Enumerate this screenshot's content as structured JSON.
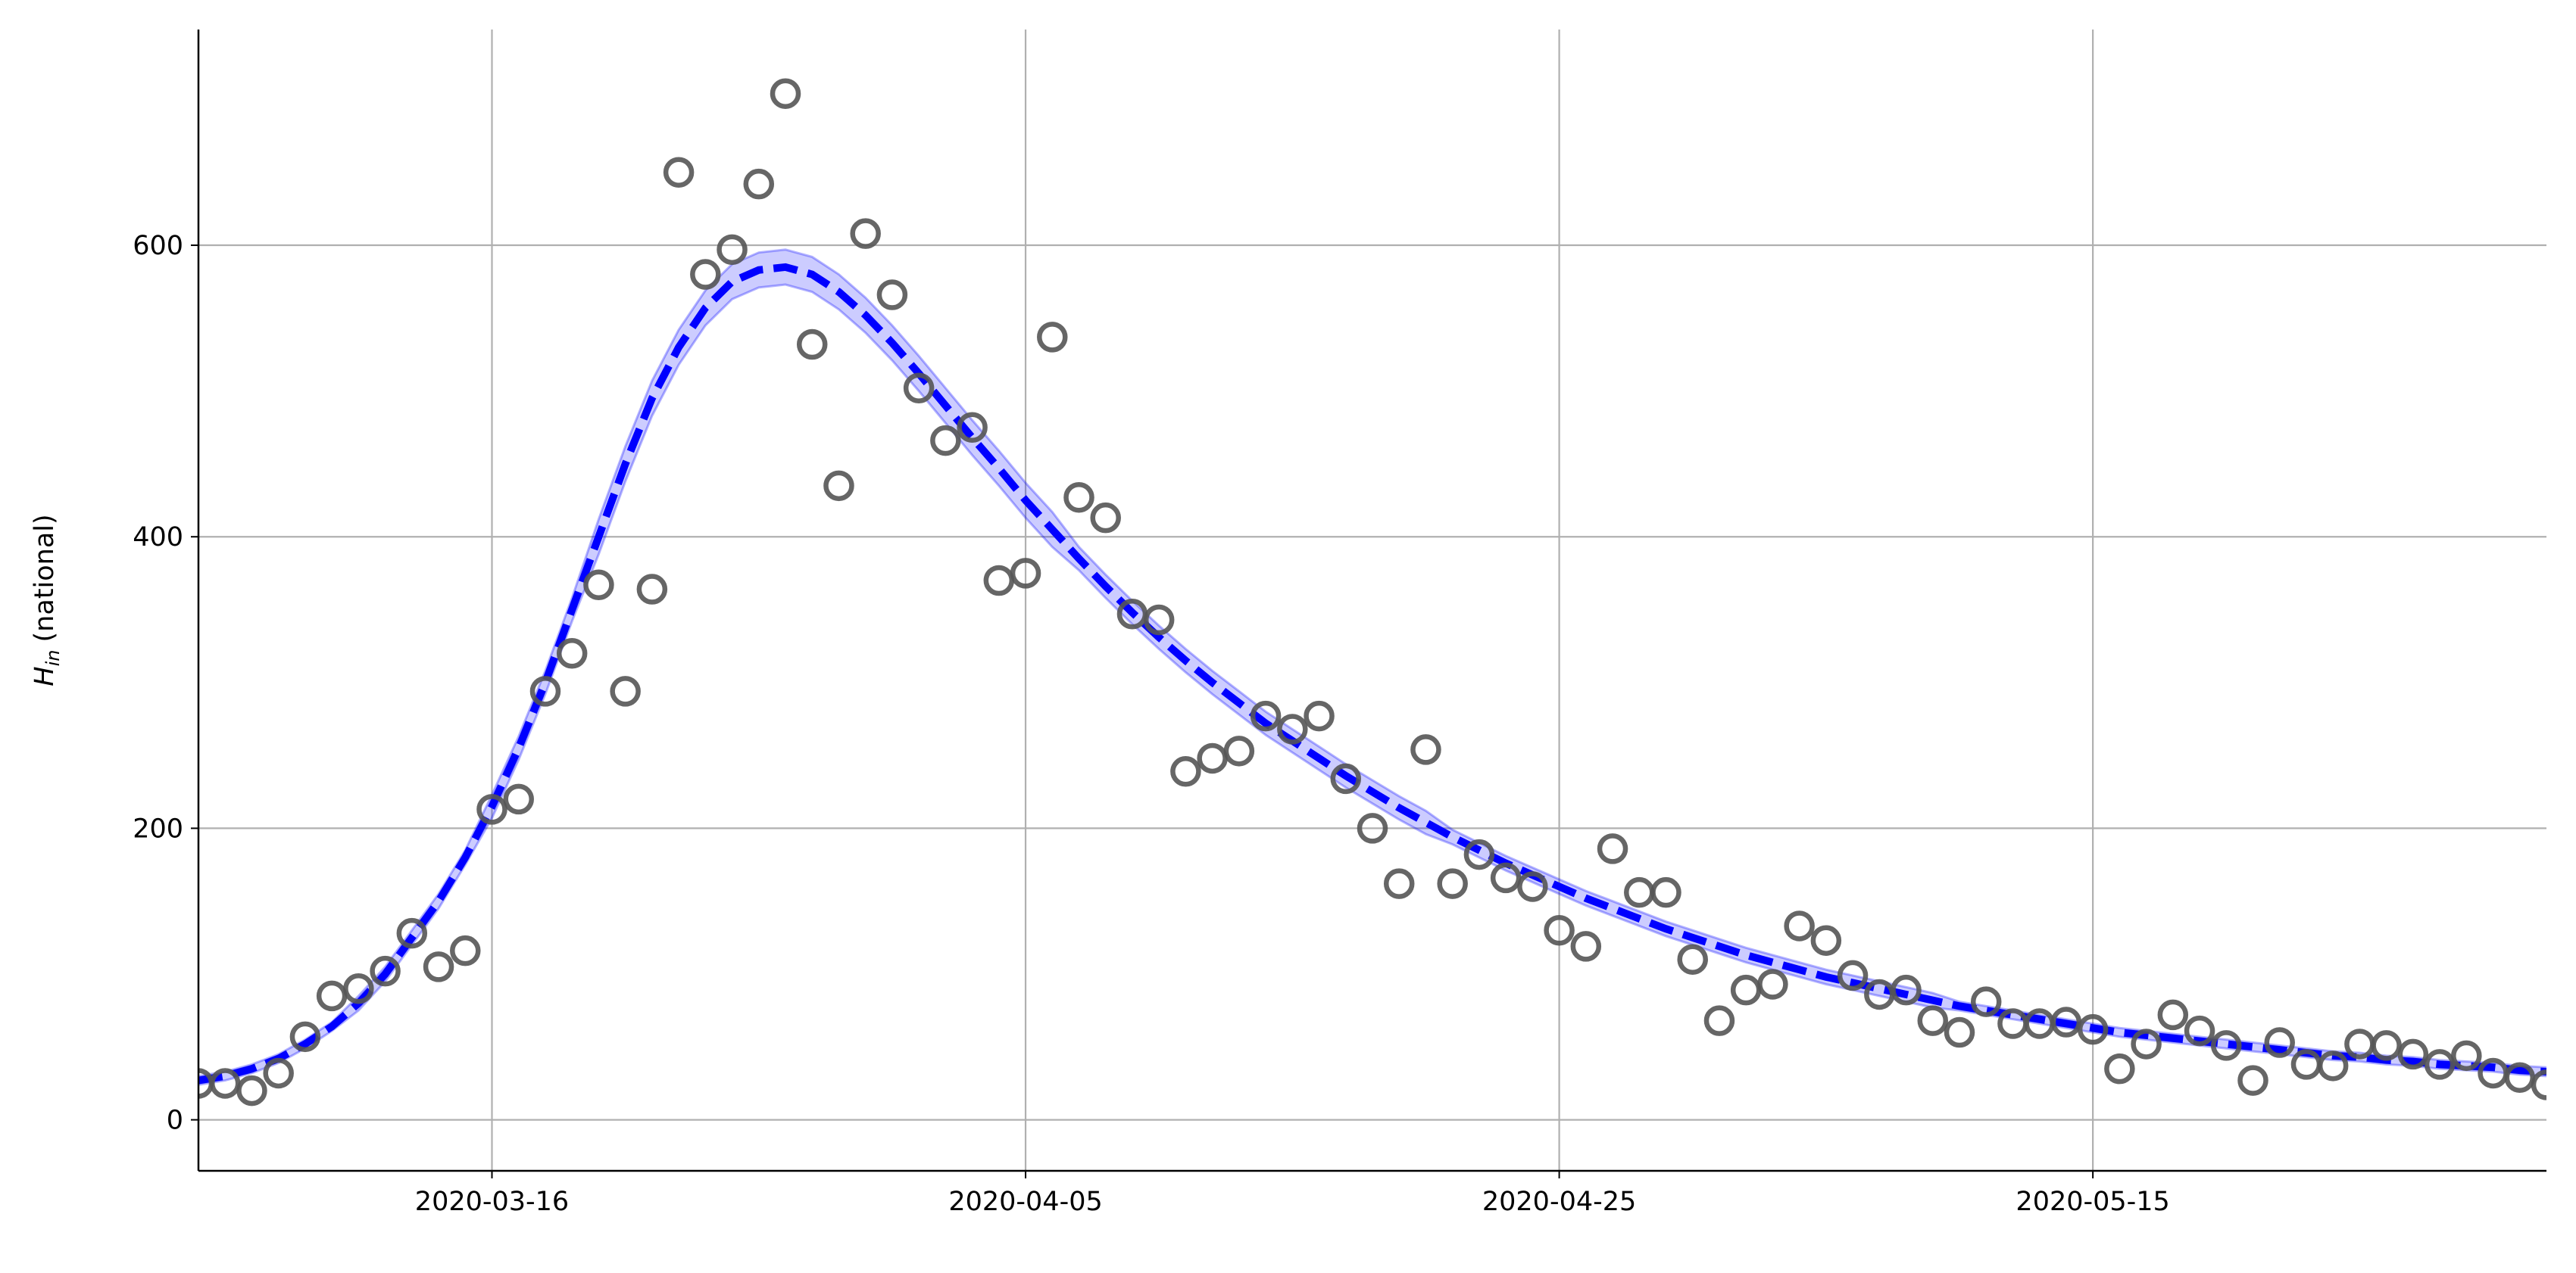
{
  "chart_data": {
    "type": "scatter",
    "ylabel": [
      "H",
      "in",
      "(national)"
    ],
    "x": [
      "2020-03-05",
      "2020-03-06",
      "2020-03-07",
      "2020-03-08",
      "2020-03-09",
      "2020-03-10",
      "2020-03-11",
      "2020-03-12",
      "2020-03-13",
      "2020-03-14",
      "2020-03-15",
      "2020-03-16",
      "2020-03-17",
      "2020-03-18",
      "2020-03-19",
      "2020-03-20",
      "2020-03-21",
      "2020-03-22",
      "2020-03-23",
      "2020-03-24",
      "2020-03-25",
      "2020-03-26",
      "2020-03-27",
      "2020-03-28",
      "2020-03-29",
      "2020-03-30",
      "2020-03-31",
      "2020-04-01",
      "2020-04-02",
      "2020-04-03",
      "2020-04-04",
      "2020-04-05",
      "2020-04-06",
      "2020-04-07",
      "2020-04-08",
      "2020-04-09",
      "2020-04-10",
      "2020-04-11",
      "2020-04-12",
      "2020-04-13",
      "2020-04-14",
      "2020-04-15",
      "2020-04-16",
      "2020-04-17",
      "2020-04-18",
      "2020-04-19",
      "2020-04-20",
      "2020-04-21",
      "2020-04-22",
      "2020-04-23",
      "2020-04-24",
      "2020-04-25",
      "2020-04-26",
      "2020-04-27",
      "2020-04-28",
      "2020-04-29",
      "2020-04-30",
      "2020-05-01",
      "2020-05-02",
      "2020-05-03",
      "2020-05-04",
      "2020-05-05",
      "2020-05-06",
      "2020-05-07",
      "2020-05-08",
      "2020-05-09",
      "2020-05-10",
      "2020-05-11",
      "2020-05-12",
      "2020-05-13",
      "2020-05-14",
      "2020-05-15",
      "2020-05-16",
      "2020-05-17",
      "2020-05-18",
      "2020-05-19",
      "2020-05-20",
      "2020-05-21",
      "2020-05-22",
      "2020-05-23",
      "2020-05-24",
      "2020-05-25",
      "2020-05-26",
      "2020-05-27",
      "2020-05-28",
      "2020-05-29",
      "2020-05-30",
      "2020-05-31",
      "2020-06-01"
    ],
    "series": [
      {
        "type": "scatter",
        "color": "#555555",
        "values": [
          25,
          25,
          20,
          32,
          57,
          85,
          90,
          102,
          128,
          105,
          116,
          213,
          220,
          294,
          320,
          367,
          294,
          364,
          650,
          580,
          597,
          642,
          704,
          532,
          435,
          608,
          566,
          502,
          466,
          475,
          370,
          375,
          537,
          427,
          413,
          347,
          343,
          239,
          248,
          253,
          277,
          268,
          277,
          234,
          200,
          162,
          254,
          162,
          182,
          166,
          160,
          130,
          119,
          186,
          156,
          156,
          110,
          68,
          89,
          93,
          133,
          123,
          99,
          86,
          89,
          68,
          60,
          81,
          66,
          66,
          67,
          62,
          35,
          52,
          72,
          61,
          51,
          27,
          53,
          38,
          37,
          52,
          51,
          45,
          38,
          44,
          32,
          29,
          24
        ]
      },
      {
        "type": "line",
        "color": "#0000ff",
        "dash": true,
        "values": [
          27,
          30,
          35,
          42,
          52,
          64,
          80,
          100,
          125,
          150,
          180,
          215,
          255,
          300,
          350,
          400,
          450,
          495,
          530,
          557,
          575,
          583,
          585,
          580,
          568,
          552,
          533,
          512,
          490,
          468,
          447,
          425,
          405,
          385,
          366,
          348,
          331,
          315,
          300,
          286,
          272,
          260,
          248,
          236,
          225,
          214,
          204,
          194,
          185,
          176,
          168,
          160,
          152,
          145,
          138,
          131,
          125,
          119,
          113,
          108,
          103,
          98,
          94,
          90,
          86,
          82,
          78,
          75,
          72,
          69,
          66,
          63,
          60,
          58,
          56,
          54,
          52,
          50,
          48,
          46,
          44,
          43,
          41,
          40,
          38,
          37,
          36,
          34,
          33
        ],
        "band": {
          "color": "#0000ff",
          "lower": [
            24,
            27,
            32,
            39,
            49,
            61,
            75,
            95,
            120,
            145,
            175,
            207,
            247,
            292,
            342,
            388,
            438,
            483,
            518,
            545,
            563,
            571,
            573,
            568,
            556,
            540,
            521,
            500,
            478,
            456,
            435,
            413,
            393,
            377,
            358,
            340,
            323,
            307,
            292,
            278,
            264,
            252,
            240,
            228,
            217,
            206,
            196,
            189,
            180,
            171,
            163,
            155,
            147,
            140,
            133,
            126,
            120,
            114,
            108,
            103,
            98,
            93,
            89,
            85,
            81,
            77,
            75,
            72,
            69,
            66,
            63,
            60,
            57,
            55,
            53,
            51,
            49,
            47,
            45,
            43,
            41,
            40,
            38,
            37,
            35,
            34,
            33,
            31,
            30
          ],
          "upper": [
            30,
            33,
            38,
            45,
            55,
            67,
            85,
            105,
            130,
            155,
            185,
            223,
            263,
            308,
            358,
            412,
            462,
            507,
            542,
            569,
            587,
            595,
            597,
            592,
            580,
            564,
            545,
            524,
            502,
            480,
            459,
            437,
            417,
            393,
            374,
            356,
            339,
            323,
            308,
            294,
            280,
            268,
            256,
            244,
            233,
            222,
            212,
            199,
            190,
            181,
            173,
            165,
            157,
            150,
            143,
            136,
            130,
            124,
            118,
            113,
            108,
            103,
            99,
            95,
            91,
            87,
            81,
            78,
            75,
            72,
            69,
            66,
            63,
            61,
            59,
            57,
            55,
            53,
            51,
            49,
            47,
            46,
            44,
            43,
            41,
            40,
            39,
            37,
            36
          ]
        }
      }
    ],
    "xlim": [
      "2020-03-05",
      "2020-06-01"
    ],
    "xticks": [
      "2020-03-16",
      "2020-04-05",
      "2020-04-25",
      "2020-05-15"
    ],
    "ylim": [
      -35,
      748
    ],
    "yticks": [
      0,
      200,
      400,
      600
    ],
    "grid": true
  }
}
